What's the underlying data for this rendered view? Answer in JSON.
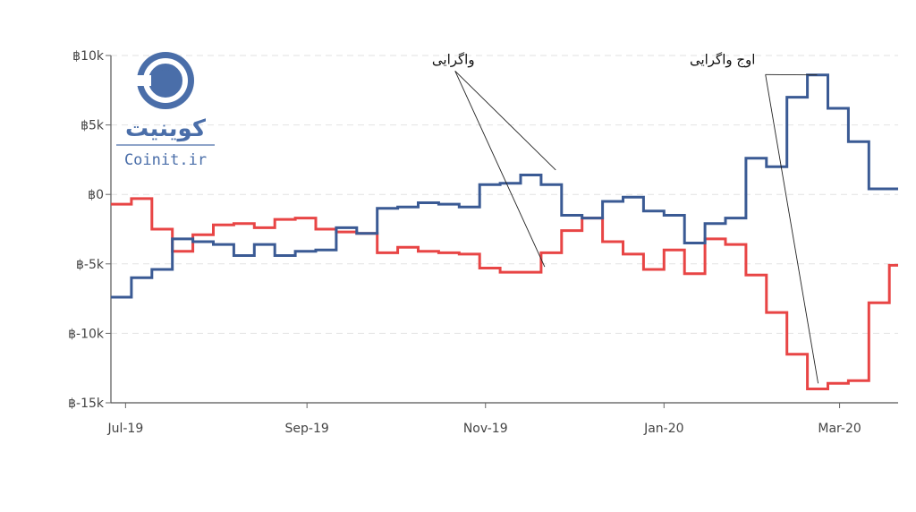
{
  "chart_data": {
    "type": "line",
    "step": true,
    "ylim": [
      -15000,
      10000
    ],
    "xlim": [
      "2019-06-26",
      "2020-03-21"
    ],
    "y_ticks": [
      {
        "value": 10000,
        "label": "฿10k"
      },
      {
        "value": 5000,
        "label": "฿5k"
      },
      {
        "value": 0,
        "label": "฿0"
      },
      {
        "value": -5000,
        "label": "฿-5k"
      },
      {
        "value": -10000,
        "label": "฿-10k"
      },
      {
        "value": -15000,
        "label": "฿-15k"
      }
    ],
    "x_ticks": [
      {
        "value": "2019-07-01",
        "label": "Jul-19"
      },
      {
        "value": "2019-09-01",
        "label": "Sep-19"
      },
      {
        "value": "2019-11-01",
        "label": "Nov-19"
      },
      {
        "value": "2020-01-01",
        "label": "Jan-20"
      },
      {
        "value": "2020-03-01",
        "label": "Mar-20"
      }
    ],
    "grid": "horizontal-dashed",
    "series": [
      {
        "color": "#e84545",
        "x": [
          "2019-06-26",
          "2019-07-03",
          "2019-07-10",
          "2019-07-17",
          "2019-07-24",
          "2019-07-31",
          "2019-08-07",
          "2019-08-14",
          "2019-08-21",
          "2019-08-28",
          "2019-09-04",
          "2019-09-11",
          "2019-09-18",
          "2019-09-25",
          "2019-10-02",
          "2019-10-09",
          "2019-10-16",
          "2019-10-23",
          "2019-10-30",
          "2019-11-06",
          "2019-11-13",
          "2019-11-20",
          "2019-11-27",
          "2019-12-04",
          "2019-12-11",
          "2019-12-18",
          "2019-12-25",
          "2020-01-01",
          "2020-01-08",
          "2020-01-15",
          "2020-01-22",
          "2020-01-29",
          "2020-02-05",
          "2020-02-12",
          "2020-02-19",
          "2020-02-26",
          "2020-03-04",
          "2020-03-11",
          "2020-03-18"
        ],
        "y": [
          -700,
          -300,
          -2500,
          -4100,
          -2900,
          -2200,
          -2100,
          -2400,
          -1800,
          -1700,
          -2500,
          -2700,
          -2800,
          -4200,
          -3800,
          -4100,
          -4200,
          -4300,
          -5300,
          -5600,
          -5600,
          -4200,
          -2600,
          -1700,
          -3400,
          -4300,
          -5400,
          -4000,
          -5700,
          -3200,
          -3600,
          -5800,
          -8500,
          -11500,
          -14000,
          -13600,
          -13400,
          -7800,
          -5100
        ]
      },
      {
        "color": "#3a5a94",
        "x": [
          "2019-06-26",
          "2019-07-03",
          "2019-07-10",
          "2019-07-17",
          "2019-07-24",
          "2019-07-31",
          "2019-08-07",
          "2019-08-14",
          "2019-08-21",
          "2019-08-28",
          "2019-09-04",
          "2019-09-11",
          "2019-09-18",
          "2019-09-25",
          "2019-10-02",
          "2019-10-09",
          "2019-10-16",
          "2019-10-23",
          "2019-10-30",
          "2019-11-06",
          "2019-11-13",
          "2019-11-20",
          "2019-11-27",
          "2019-12-04",
          "2019-12-11",
          "2019-12-18",
          "2019-12-25",
          "2020-01-01",
          "2020-01-08",
          "2020-01-15",
          "2020-01-22",
          "2020-01-29",
          "2020-02-05",
          "2020-02-12",
          "2020-02-19",
          "2020-02-26",
          "2020-03-04",
          "2020-03-11",
          "2020-03-18"
        ],
        "y": [
          -7400,
          -6000,
          -5400,
          -3200,
          -3400,
          -3600,
          -4400,
          -3600,
          -4400,
          -4100,
          -4000,
          -2400,
          -2800,
          -1000,
          -900,
          -600,
          -700,
          -900,
          700,
          800,
          1400,
          700,
          -1500,
          -1700,
          -500,
          -200,
          -1200,
          -1500,
          -3500,
          -2100,
          -1700,
          2600,
          2000,
          7000,
          8600,
          6200,
          3800,
          400,
          400
        ]
      }
    ],
    "annotations": [
      {
        "text": "واگرایی",
        "x": "2019-10-21",
        "y": 9400
      },
      {
        "text": "اوج واگرایی",
        "x": "2020-01-21",
        "y": 9400
      }
    ]
  },
  "logo": {
    "wordmark": "کوینیت",
    "url_text": "Coinit.ir",
    "color": "#4a6ea9"
  }
}
